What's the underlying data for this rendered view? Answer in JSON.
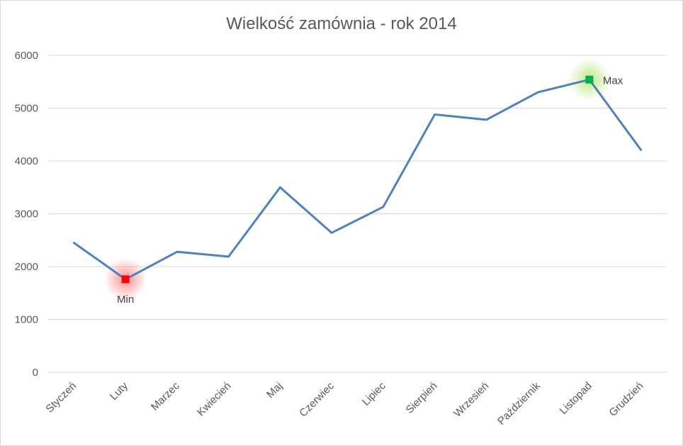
{
  "chart_data": {
    "type": "line",
    "title": "Wielkość zamównia - rok 2014",
    "xlabel": "",
    "ylabel": "",
    "categories": [
      "Styczeń",
      "Luty",
      "Marzec",
      "Kwiecień",
      "Maj",
      "Czerwiec",
      "Lipiec",
      "Sierpień",
      "Wrzesień",
      "Październik",
      "Listopad",
      "Grudzień"
    ],
    "series": [
      {
        "values": [
          2450,
          1760,
          2280,
          2190,
          3500,
          2640,
          3130,
          4880,
          4780,
          5300,
          5540,
          4210
        ],
        "color": "#4f81bd"
      }
    ],
    "ylim": [
      0,
      6000
    ],
    "yticks": [
      0,
      1000,
      2000,
      3000,
      4000,
      5000,
      6000
    ],
    "grid": true,
    "legend": "none",
    "annotations": [
      {
        "label": "Min",
        "category": "Luty",
        "value": 1760,
        "color": "#ff0000",
        "glow": "#ff9999"
      },
      {
        "label": "Max",
        "category": "Listopad",
        "value": 5540,
        "color": "#00b050",
        "glow": "#c6ef8c"
      }
    ]
  }
}
